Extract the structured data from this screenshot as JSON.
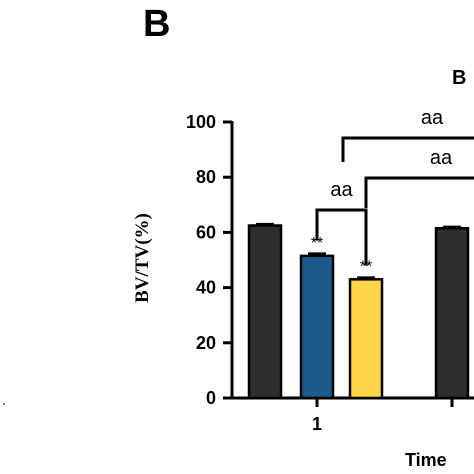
{
  "panel_label": "B",
  "partial_top_text": "B",
  "chart_data": {
    "type": "bar",
    "ylabel": "BV/TV(%)",
    "xlabel": "Time",
    "ylim": [
      0,
      100
    ],
    "y_ticks": [
      0,
      20,
      40,
      60,
      80,
      100
    ],
    "categories": [
      "1",
      ""
    ],
    "series": [
      {
        "color": "#2e2e2e",
        "values": [
          62.5,
          61.5
        ],
        "errors": [
          0.5,
          0.5
        ],
        "labels": [
          "",
          ""
        ]
      },
      {
        "color": "#1c5a8c",
        "values": [
          51.5,
          null
        ],
        "errors": [
          0.8,
          null
        ],
        "labels": [
          "**",
          ""
        ]
      },
      {
        "color": "#ffd447",
        "values": [
          43.0,
          null
        ],
        "errors": [
          0.6,
          null
        ],
        "labels": [
          "**",
          ""
        ]
      }
    ],
    "brackets": [
      {
        "text": "aa"
      },
      {
        "text": "aa"
      },
      {
        "text": "aa"
      }
    ],
    "grid": false,
    "legend": "none"
  }
}
